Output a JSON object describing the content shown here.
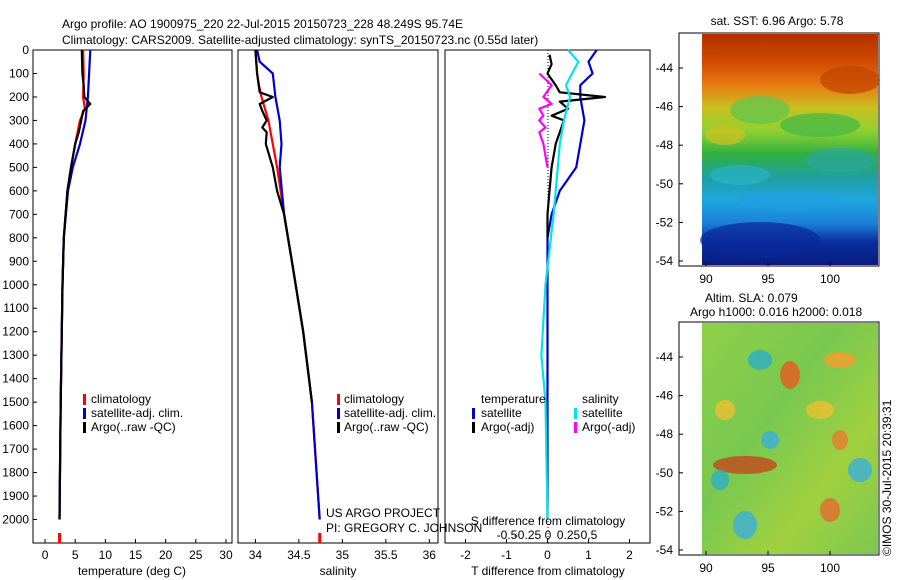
{
  "header": {
    "line1": "Argo profile: AO 1900975_220 22-Jul-2015 20150723_228 48.249S 95.74E",
    "line2": "Climatology: CARS2009. Satellite-adjusted climatology: synTS_20150723.nc (0.55d later)"
  },
  "colors": {
    "climatology": "#ff0000",
    "satellite_clim": "#0000cc",
    "argo": "#000000",
    "sat_salinity": "#00e5e5",
    "argo_salinity": "#ff00ff"
  },
  "credits": {
    "project": "US ARGO PROJECT",
    "pi": "PI: GREGORY C. JOHNSON",
    "imos": "©IMOS 30-Jul-2015 20:39:31"
  },
  "chart_data": [
    {
      "type": "line",
      "name": "temperature profile",
      "xlabel": "temperature (deg C)",
      "ylabel": "",
      "xlim": [
        -2,
        31
      ],
      "ylim": [
        2100,
        0
      ],
      "x_ticks": [
        0,
        5,
        10,
        15,
        20,
        25,
        30
      ],
      "y_ticks": [
        0,
        100,
        200,
        300,
        400,
        500,
        600,
        700,
        800,
        900,
        1000,
        1100,
        1200,
        1300,
        1400,
        1500,
        1600,
        1700,
        1800,
        1900,
        2000
      ],
      "legend": [
        "climatology",
        "satellite-adj. clim.",
        "Argo(..raw -QC)"
      ],
      "series": [
        {
          "name": "climatology",
          "color": "#ff0000",
          "depth": [
            0,
            100,
            200,
            250,
            300,
            400,
            500,
            600,
            800,
            1000,
            1500,
            2000
          ],
          "x": [
            6.3,
            6.4,
            6.3,
            6.6,
            5.8,
            5.0,
            4.3,
            3.7,
            3.1,
            2.9,
            2.6,
            2.4
          ]
        },
        {
          "name": "satellite-adj. clim.",
          "color": "#0000cc",
          "depth": [
            0,
            100,
            200,
            300,
            400,
            500,
            600,
            800,
            1000,
            1500,
            2000
          ],
          "x": [
            7.5,
            7.3,
            7.1,
            6.7,
            5.8,
            4.6,
            3.8,
            3.1,
            2.9,
            2.6,
            2.4
          ]
        },
        {
          "name": "Argo(..raw -QC)",
          "color": "#000000",
          "depth": [
            0,
            100,
            150,
            200,
            230,
            260,
            300,
            350,
            400,
            500,
            600,
            800,
            1000,
            1500,
            2000
          ],
          "x": [
            6.1,
            6.2,
            6.4,
            6.5,
            7.5,
            6.3,
            6.0,
            5.6,
            5.0,
            4.3,
            3.7,
            3.1,
            2.9,
            2.6,
            2.4
          ]
        }
      ]
    },
    {
      "type": "line",
      "name": "salinity profile",
      "xlabel": "salinity",
      "ylabel": "",
      "xlim": [
        33.8,
        36.1
      ],
      "ylim": [
        2100,
        0
      ],
      "x_ticks": [
        34,
        34.5,
        35,
        35.5,
        36
      ],
      "legend": [
        "climatology",
        "satellite-adj. clim.",
        "Argo(..raw -QC)"
      ],
      "series": [
        {
          "name": "climatology",
          "color": "#ff0000",
          "depth": [
            0,
            100,
            150,
            200,
            300,
            500,
            700,
            900,
            1200,
            1500,
            2000
          ],
          "x": [
            34.0,
            34.02,
            34.04,
            34.07,
            34.15,
            34.25,
            34.33,
            34.42,
            34.55,
            34.65,
            34.74
          ]
        },
        {
          "name": "satellite-adj. clim.",
          "color": "#0000cc",
          "depth": [
            0,
            50,
            100,
            200,
            300,
            400,
            500,
            700,
            900,
            1200,
            1500,
            2000
          ],
          "x": [
            34.02,
            34.05,
            34.2,
            34.23,
            34.28,
            34.3,
            34.28,
            34.33,
            34.42,
            34.55,
            34.65,
            34.74
          ]
        },
        {
          "name": "Argo(..raw -QC)",
          "color": "#000000",
          "depth": [
            0,
            100,
            180,
            200,
            230,
            260,
            300,
            330,
            350,
            400,
            500,
            600,
            700,
            900,
            1200,
            1500
          ],
          "x": [
            34.0,
            34.02,
            34.05,
            34.2,
            34.05,
            34.08,
            34.13,
            34.08,
            34.13,
            34.12,
            34.2,
            34.25,
            34.33,
            34.42,
            34.55,
            34.65
          ]
        }
      ]
    },
    {
      "type": "line",
      "name": "difference from climatology",
      "xlabel": "T difference from climatology",
      "xlabel_top": "S difference from climatology",
      "xlim": [
        -2.5,
        2.5
      ],
      "ylim": [
        2100,
        0
      ],
      "x_ticks": [
        -2,
        -1,
        0,
        1,
        2
      ],
      "x_ticks_top": [
        "-0.5",
        "-0.25",
        "0",
        "0.25",
        "0.5"
      ],
      "legend_groups": [
        "temperature",
        "salinity"
      ],
      "legend": [
        "satellite",
        "Argo(-adj)",
        "satellite",
        "Argo(-adj)"
      ],
      "series": [
        {
          "name": "satellite",
          "color": "#0000cc",
          "depth": [
            0,
            50,
            100,
            150,
            200,
            300,
            400,
            500,
            600,
            700,
            800,
            1000,
            1500,
            2000
          ],
          "x": [
            1.2,
            1.0,
            1.1,
            0.8,
            0.8,
            0.9,
            0.8,
            0.7,
            0.3,
            0.1,
            0.0,
            0.0,
            0.0,
            0.0
          ]
        },
        {
          "name": "Argo(-adj)",
          "color": "#000000",
          "depth": [
            20,
            60,
            100,
            150,
            180,
            200,
            220,
            250,
            280,
            300,
            350,
            400,
            500,
            600,
            700,
            800
          ],
          "x": [
            0.05,
            0.1,
            0.0,
            0.2,
            0.3,
            1.4,
            0.3,
            0.5,
            0.1,
            0.4,
            0.3,
            0.2,
            0.1,
            0.05,
            0.0,
            0.0
          ]
        },
        {
          "name": "satellite",
          "color": "#00e5e5",
          "depth": [
            0,
            50,
            100,
            150,
            200,
            300,
            400,
            500,
            700,
            1000,
            1300,
            1500,
            2000
          ],
          "x": [
            0.5,
            0.75,
            0.6,
            0.45,
            0.55,
            0.4,
            0.3,
            0.25,
            0.15,
            -0.05,
            -0.15,
            -0.05,
            0.0
          ]
        },
        {
          "name": "Argo(-adj)",
          "color": "#ff00ff",
          "depth": [
            100,
            150,
            200,
            230,
            250,
            280,
            300,
            330,
            350,
            400,
            500
          ],
          "x": [
            -0.2,
            0.1,
            -0.1,
            0.1,
            -0.2,
            -0.1,
            -0.2,
            -0.05,
            -0.2,
            -0.1,
            0.0
          ]
        }
      ]
    },
    {
      "type": "heatmap",
      "name": "SST map",
      "title": "sat. SST: 6.96 Argo: 5.78",
      "x_ticks": [
        90,
        95,
        100
      ],
      "y_ticks": [
        -44,
        -46,
        -48,
        -50,
        -52,
        -54
      ]
    },
    {
      "type": "heatmap",
      "name": "SLA map",
      "title": "Altim. SLA: 0.079",
      "subtitle": "Argo h1000: 0.016 h2000: 0.018",
      "x_ticks": [
        90,
        95,
        100
      ],
      "y_ticks": [
        -44,
        -46,
        -48,
        -50,
        -52,
        -54
      ]
    }
  ]
}
